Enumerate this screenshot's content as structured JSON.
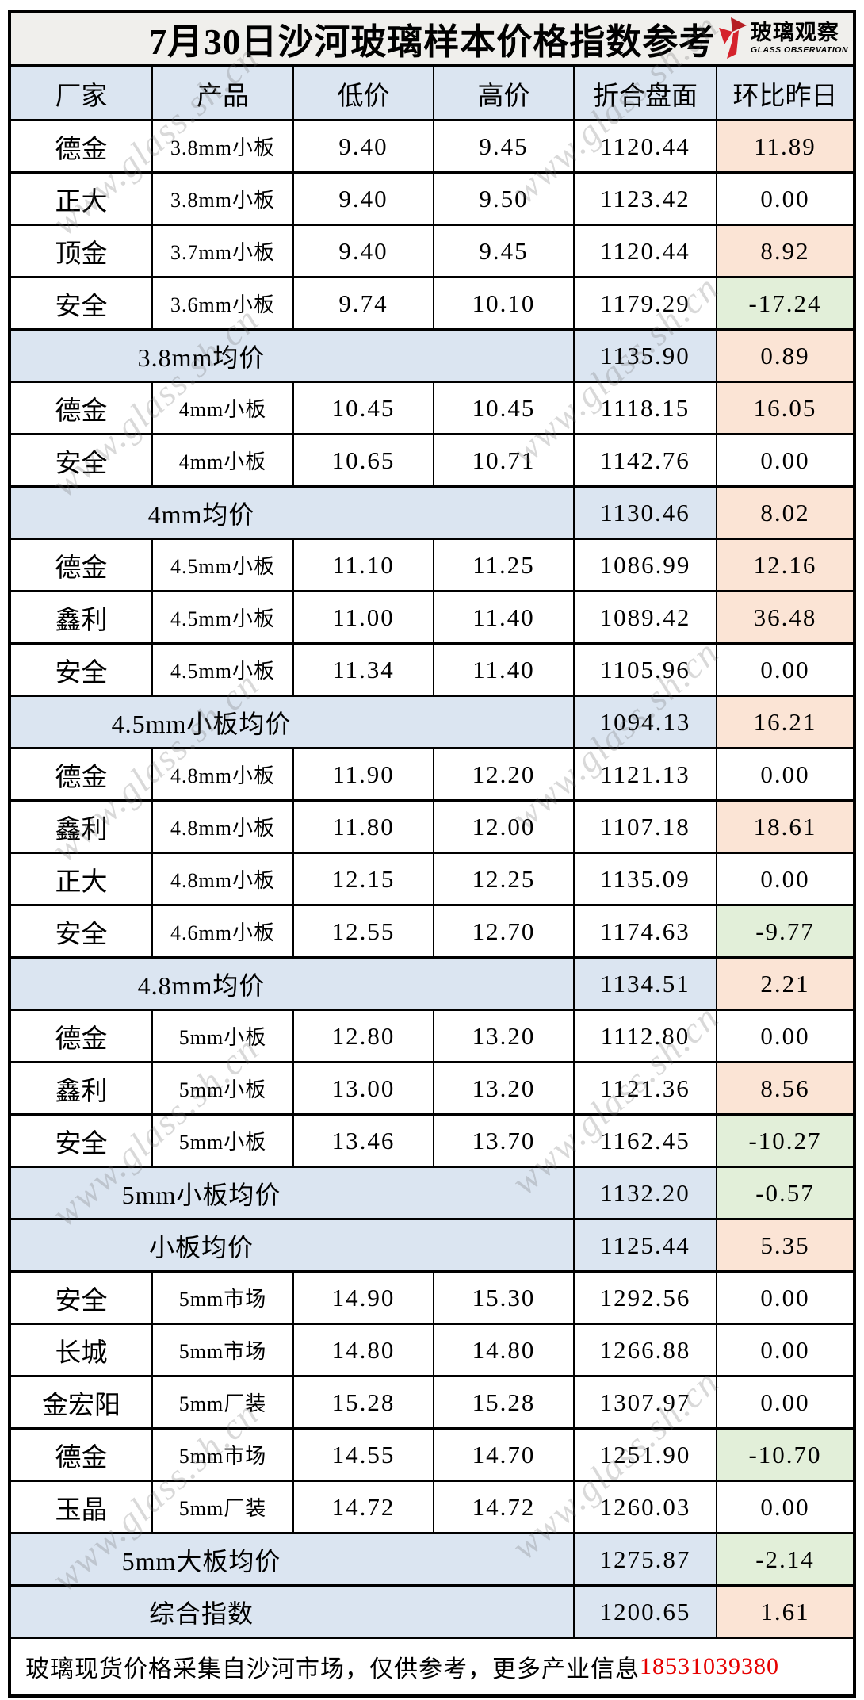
{
  "title": "7月30日沙河玻璃样本价格指数参考",
  "logo": {
    "name_cn": "玻璃观察",
    "name_en": "GLASS OBSERVATION"
  },
  "watermark": "www.glass.sh.cn",
  "columns": [
    "厂家",
    "产品",
    "低价",
    "高价",
    "折合盘面",
    "环比昨日"
  ],
  "rows": [
    {
      "type": "data",
      "factory": "德金",
      "product": "3.8mm小板",
      "low": "9.40",
      "high": "9.45",
      "index": "1120.44",
      "change": "11.89",
      "change_color": "up"
    },
    {
      "type": "data",
      "factory": "正大",
      "product": "3.8mm小板",
      "low": "9.40",
      "high": "9.50",
      "index": "1123.42",
      "change": "0.00",
      "change_color": "flat"
    },
    {
      "type": "data",
      "factory": "顶金",
      "product": "3.7mm小板",
      "low": "9.40",
      "high": "9.45",
      "index": "1120.44",
      "change": "8.92",
      "change_color": "up"
    },
    {
      "type": "data",
      "factory": "安全",
      "product": "3.6mm小板",
      "low": "9.74",
      "high": "10.10",
      "index": "1179.29",
      "change": "-17.24",
      "change_color": "down"
    },
    {
      "type": "summary",
      "label": "3.8mm均价",
      "index": "1135.90",
      "change": "0.89",
      "change_color": "up"
    },
    {
      "type": "data",
      "factory": "德金",
      "product": "4mm小板",
      "low": "10.45",
      "high": "10.45",
      "index": "1118.15",
      "change": "16.05",
      "change_color": "up"
    },
    {
      "type": "data",
      "factory": "安全",
      "product": "4mm小板",
      "low": "10.65",
      "high": "10.71",
      "index": "1142.76",
      "change": "0.00",
      "change_color": "flat"
    },
    {
      "type": "summary",
      "label": "4mm均价",
      "index": "1130.46",
      "change": "8.02",
      "change_color": "up"
    },
    {
      "type": "data",
      "factory": "德金",
      "product": "4.5mm小板",
      "low": "11.10",
      "high": "11.25",
      "index": "1086.99",
      "change": "12.16",
      "change_color": "up"
    },
    {
      "type": "data",
      "factory": "鑫利",
      "product": "4.5mm小板",
      "low": "11.00",
      "high": "11.40",
      "index": "1089.42",
      "change": "36.48",
      "change_color": "up"
    },
    {
      "type": "data",
      "factory": "安全",
      "product": "4.5mm小板",
      "low": "11.34",
      "high": "11.40",
      "index": "1105.96",
      "change": "0.00",
      "change_color": "flat"
    },
    {
      "type": "summary",
      "label": "4.5mm小板均价",
      "index": "1094.13",
      "change": "16.21",
      "change_color": "up"
    },
    {
      "type": "data",
      "factory": "德金",
      "product": "4.8mm小板",
      "low": "11.90",
      "high": "12.20",
      "index": "1121.13",
      "change": "0.00",
      "change_color": "flat"
    },
    {
      "type": "data",
      "factory": "鑫利",
      "product": "4.8mm小板",
      "low": "11.80",
      "high": "12.00",
      "index": "1107.18",
      "change": "18.61",
      "change_color": "up"
    },
    {
      "type": "data",
      "factory": "正大",
      "product": "4.8mm小板",
      "low": "12.15",
      "high": "12.25",
      "index": "1135.09",
      "change": "0.00",
      "change_color": "flat"
    },
    {
      "type": "data",
      "factory": "安全",
      "product": "4.6mm小板",
      "low": "12.55",
      "high": "12.70",
      "index": "1174.63",
      "change": "-9.77",
      "change_color": "down"
    },
    {
      "type": "summary",
      "label": "4.8mm均价",
      "index": "1134.51",
      "change": "2.21",
      "change_color": "up"
    },
    {
      "type": "data",
      "factory": "德金",
      "product": "5mm小板",
      "low": "12.80",
      "high": "13.20",
      "index": "1112.80",
      "change": "0.00",
      "change_color": "flat"
    },
    {
      "type": "data",
      "factory": "鑫利",
      "product": "5mm小板",
      "low": "13.00",
      "high": "13.20",
      "index": "1121.36",
      "change": "8.56",
      "change_color": "up"
    },
    {
      "type": "data",
      "factory": "安全",
      "product": "5mm小板",
      "low": "13.46",
      "high": "13.70",
      "index": "1162.45",
      "change": "-10.27",
      "change_color": "down"
    },
    {
      "type": "summary",
      "label": "5mm小板均价",
      "index": "1132.20",
      "change": "-0.57",
      "change_color": "down"
    },
    {
      "type": "summary",
      "label": "小板均价",
      "index": "1125.44",
      "change": "5.35",
      "change_color": "up"
    },
    {
      "type": "data",
      "factory": "安全",
      "product": "5mm市场",
      "low": "14.90",
      "high": "15.30",
      "index": "1292.56",
      "change": "0.00",
      "change_color": "flat"
    },
    {
      "type": "data",
      "factory": "长城",
      "product": "5mm市场",
      "low": "14.80",
      "high": "14.80",
      "index": "1266.88",
      "change": "0.00",
      "change_color": "flat"
    },
    {
      "type": "data",
      "factory": "金宏阳",
      "product": "5mm厂装",
      "low": "15.28",
      "high": "15.28",
      "index": "1307.97",
      "change": "0.00",
      "change_color": "flat"
    },
    {
      "type": "data",
      "factory": "德金",
      "product": "5mm市场",
      "low": "14.55",
      "high": "14.70",
      "index": "1251.90",
      "change": "-10.70",
      "change_color": "down"
    },
    {
      "type": "data",
      "factory": "玉晶",
      "product": "5mm厂装",
      "low": "14.72",
      "high": "14.72",
      "index": "1260.03",
      "change": "0.00",
      "change_color": "flat"
    },
    {
      "type": "summary",
      "label": "5mm大板均价",
      "index": "1275.87",
      "change": "-2.14",
      "change_color": "down"
    },
    {
      "type": "summary",
      "label": "综合指数",
      "index": "1200.65",
      "change": "1.61",
      "change_color": "up"
    }
  ],
  "footer": {
    "text": "玻璃现货价格采集自沙河市场，仅供参考，更多产业信息",
    "phone": "18531039380"
  },
  "colors": {
    "header_bg": "#dbe5f1",
    "up_bg": "#fbe4d5",
    "down_bg": "#e2efd9",
    "title_bg": "#f0efec",
    "phone": "#e60000",
    "logo_red": "#d5232c",
    "logo_red_dark": "#b51e24"
  }
}
